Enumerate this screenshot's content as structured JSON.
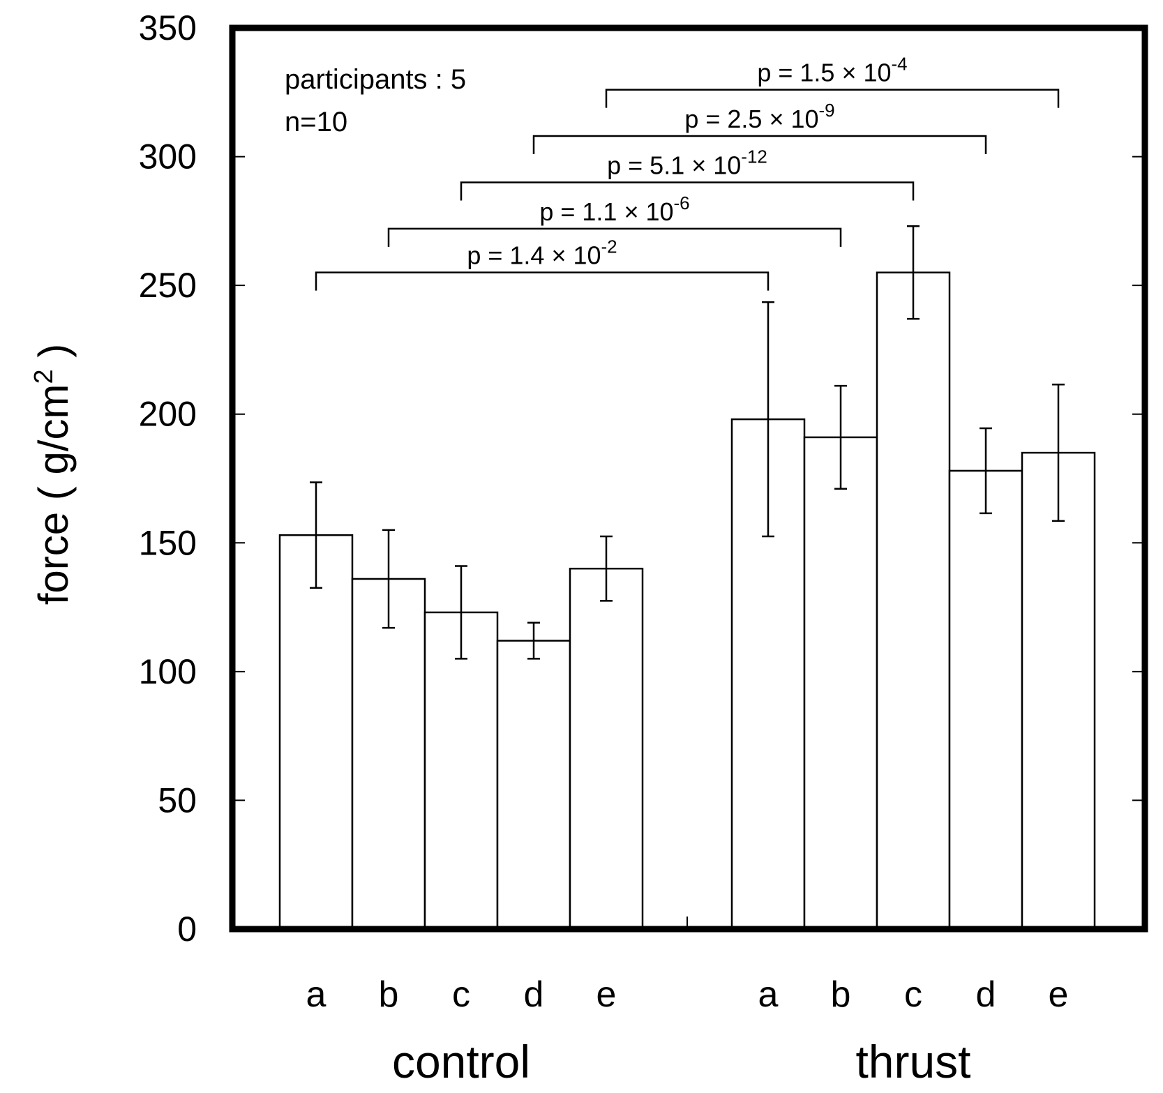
{
  "chart_data": {
    "type": "bar",
    "xlabel": "",
    "ylabel": "force ( g/cm",
    "ylabel_sup": "2",
    "ylabel_close": " )",
    "ylim": [
      0,
      350
    ],
    "yticks": [
      0,
      50,
      100,
      150,
      200,
      250,
      300,
      350
    ],
    "grid": false,
    "annotations": [
      "participants : 5",
      "n=10"
    ],
    "groups": [
      {
        "name": "control",
        "categories": [
          "a",
          "b",
          "c",
          "d",
          "e"
        ],
        "values": [
          153,
          136,
          123,
          112,
          140
        ],
        "errors": [
          20.5,
          19,
          18,
          7,
          12.5
        ]
      },
      {
        "name": "thrust",
        "categories": [
          "a",
          "b",
          "c",
          "d",
          "e"
        ],
        "values": [
          198,
          191,
          255,
          178,
          185
        ],
        "errors": [
          45.5,
          20,
          18,
          16.5,
          26.5
        ]
      }
    ],
    "comparisons": [
      {
        "from_group": 0,
        "from_index": 0,
        "to_group": 1,
        "to_index": 0,
        "level": 255,
        "p_mantissa": "p = 1.4 × 10",
        "p_exponent": "-2"
      },
      {
        "from_group": 0,
        "from_index": 1,
        "to_group": 1,
        "to_index": 1,
        "level": 272,
        "p_mantissa": "p = 1.1 × 10",
        "p_exponent": "-6"
      },
      {
        "from_group": 0,
        "from_index": 2,
        "to_group": 1,
        "to_index": 2,
        "level": 290,
        "p_mantissa": "p = 5.1 × 10",
        "p_exponent": "-12"
      },
      {
        "from_group": 0,
        "from_index": 3,
        "to_group": 1,
        "to_index": 3,
        "level": 308,
        "p_mantissa": "p = 2.5 × 10",
        "p_exponent": "-9"
      },
      {
        "from_group": 0,
        "from_index": 4,
        "to_group": 1,
        "to_index": 4,
        "level": 326,
        "p_mantissa": "p = 1.5 × 10",
        "p_exponent": "-4"
      }
    ]
  }
}
